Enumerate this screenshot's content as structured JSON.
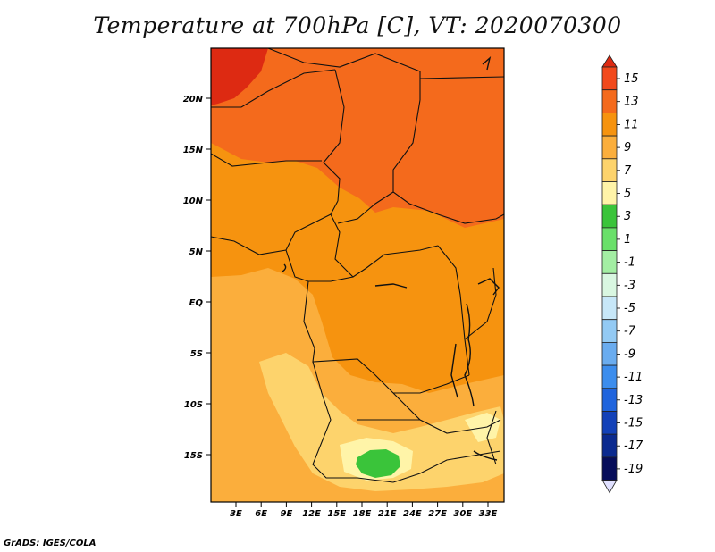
{
  "title": "Temperature at 700hPa [C], VT: 2020070300",
  "credit": "GrADS: IGES/COLA",
  "map": {
    "lat_labels": [
      "20N",
      "15N",
      "10N",
      "5N",
      "EQ",
      "5S",
      "10S",
      "15S"
    ],
    "lon_labels": [
      "3E",
      "6E",
      "9E",
      "12E",
      "15E",
      "18E",
      "21E",
      "24E",
      "27E",
      "30E",
      "33E"
    ]
  },
  "colorbar": {
    "labels": [
      "15",
      "13",
      "11",
      "9",
      "7",
      "5",
      "3",
      "1",
      "-1",
      "-3",
      "-5",
      "-7",
      "-9",
      "-11",
      "-13",
      "-15",
      "-17",
      "-19"
    ],
    "colors": [
      "#dd2a12",
      "#f2491c",
      "#f46a1c",
      "#f6930f",
      "#fbae3c",
      "#fdd36c",
      "#fff4a8",
      "#3ac43a",
      "#6ae06a",
      "#a3eea3",
      "#d9f7e1",
      "#c7e7f8",
      "#93caf4",
      "#6aacef",
      "#3c8ded",
      "#1f64dd",
      "#1341b8",
      "#0b2a8f",
      "#060d5a",
      "#e0e0ff"
    ]
  }
}
